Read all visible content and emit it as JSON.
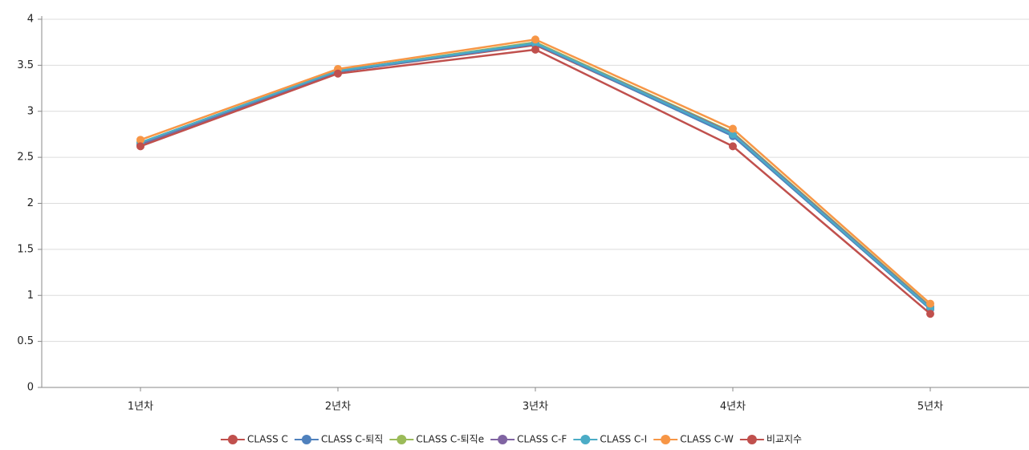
{
  "chart_data": {
    "type": "line",
    "categories": [
      "1년차",
      "2년차",
      "3년차",
      "4년차",
      "5년차"
    ],
    "series": [
      {
        "name": "CLASS C",
        "color": "#c0504d",
        "values": [
          2.64,
          3.43,
          3.72,
          2.74,
          0.86
        ]
      },
      {
        "name": "CLASS C-퇴직",
        "color": "#4f81bd",
        "values": [
          2.63,
          3.43,
          3.73,
          2.73,
          0.85
        ]
      },
      {
        "name": "CLASS C-퇴직e",
        "color": "#9bbb59",
        "values": [
          2.66,
          3.44,
          3.75,
          2.77,
          0.88
        ]
      },
      {
        "name": "CLASS C-F",
        "color": "#8064a2",
        "values": [
          2.65,
          3.44,
          3.74,
          2.76,
          0.87
        ]
      },
      {
        "name": "CLASS C-I",
        "color": "#4bacc6",
        "values": [
          2.66,
          3.44,
          3.74,
          2.75,
          0.86
        ]
      },
      {
        "name": "CLASS C-W",
        "color": "#f79646",
        "values": [
          2.69,
          3.46,
          3.78,
          2.81,
          0.91
        ]
      },
      {
        "name": "비교지수",
        "color": "#c0504d",
        "values": [
          2.62,
          3.41,
          3.67,
          2.62,
          0.8
        ]
      }
    ],
    "ylim": [
      0,
      4
    ],
    "yticks": [
      0,
      0.5,
      1,
      1.5,
      2,
      2.5,
      3,
      3.5,
      4
    ],
    "grid": true,
    "legend": "bottom"
  }
}
